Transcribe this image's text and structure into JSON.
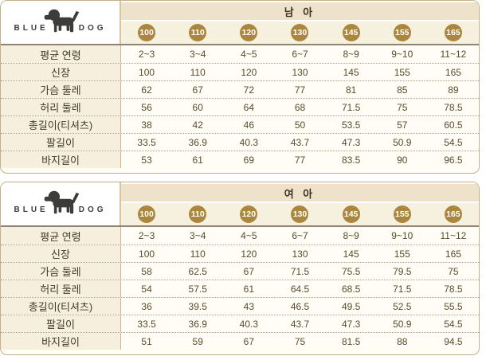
{
  "brand": {
    "name": "BLUEDOG",
    "left_letters": "BLUE",
    "right_letters": "DOG"
  },
  "colors": {
    "table_border": "#c6b088",
    "gender_band_bg": "#eee3ca",
    "size_row_bg": "#f6f0df",
    "size_circle_bg": "#ab873d",
    "size_circle_text": "#ffffff",
    "label_column_bg": "#f6efdd",
    "body_bg": "#fffdf5",
    "body_text": "#564b2b",
    "header_underline": "#8f8474",
    "dotted_separator": "#a89d82",
    "logo_silhouette": "#3c3c3a"
  },
  "tables": [
    {
      "id": "boys",
      "gender_label": "남 아",
      "sizes": [
        "100",
        "110",
        "120",
        "130",
        "145",
        "155",
        "165"
      ],
      "rows": [
        {
          "label": "평균 연령",
          "values": [
            "2~3",
            "3~4",
            "4~5",
            "6~7",
            "8~9",
            "9~10",
            "11~12"
          ]
        },
        {
          "label": "신장",
          "values": [
            "100",
            "110",
            "120",
            "130",
            "145",
            "155",
            "165"
          ]
        },
        {
          "label": "가슴 둘레",
          "values": [
            "62",
            "67",
            "72",
            "77",
            "81",
            "85",
            "89"
          ]
        },
        {
          "label": "허리 둘레",
          "values": [
            "56",
            "60",
            "64",
            "68",
            "71.5",
            "75",
            "78.5"
          ]
        },
        {
          "label": "총길이(티셔츠)",
          "values": [
            "38",
            "42",
            "46",
            "50",
            "53.5",
            "57",
            "60.5"
          ]
        },
        {
          "label": "팔길이",
          "values": [
            "33.5",
            "36.9",
            "40.3",
            "43.7",
            "47.3",
            "50.9",
            "54.5"
          ]
        },
        {
          "label": "바지길이",
          "values": [
            "53",
            "61",
            "69",
            "77",
            "83.5",
            "90",
            "96.5"
          ]
        }
      ]
    },
    {
      "id": "girls",
      "gender_label": "여 아",
      "sizes": [
        "100",
        "110",
        "120",
        "130",
        "145",
        "155",
        "165"
      ],
      "rows": [
        {
          "label": "평균 연령",
          "values": [
            "2~3",
            "3~4",
            "4~5",
            "6~7",
            "8~9",
            "9~10",
            "11~12"
          ]
        },
        {
          "label": "신장",
          "values": [
            "100",
            "110",
            "120",
            "130",
            "145",
            "155",
            "165"
          ]
        },
        {
          "label": "가슴 둘레",
          "values": [
            "58",
            "62.5",
            "67",
            "71.5",
            "75.5",
            "79.5",
            "75"
          ]
        },
        {
          "label": "허리 둘레",
          "values": [
            "54",
            "57.5",
            "61",
            "64.5",
            "68.5",
            "71.5",
            "78.5"
          ]
        },
        {
          "label": "총길이(티셔츠)",
          "values": [
            "36",
            "39.5",
            "43",
            "46.5",
            "49.5",
            "52.5",
            "55.5"
          ]
        },
        {
          "label": "팔길이",
          "values": [
            "33.5",
            "36.9",
            "40.3",
            "43.7",
            "47.3",
            "50.9",
            "54.5"
          ]
        },
        {
          "label": "바지길이",
          "values": [
            "51",
            "59",
            "67",
            "75",
            "81.5",
            "88",
            "94.5"
          ]
        }
      ]
    }
  ]
}
